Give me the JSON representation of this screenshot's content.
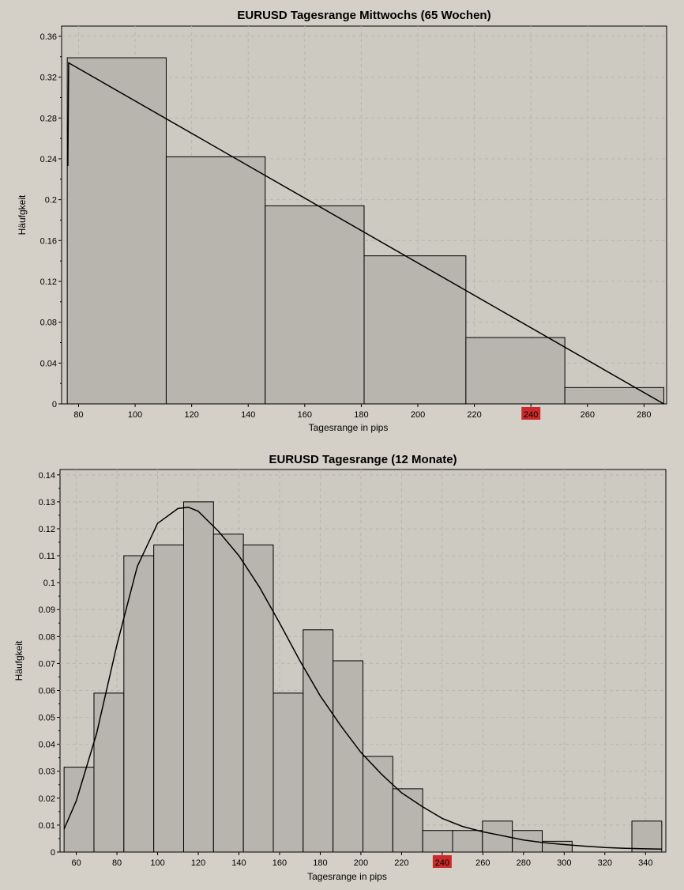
{
  "chart_data": [
    {
      "type": "bar",
      "title": "EURUSD Tagesrange Mittwochs (65 Wochen)",
      "xlabel": "Tagesrange in pips",
      "ylabel": "Häufgkeit",
      "xlim": [
        74,
        288
      ],
      "ylim": [
        0,
        0.37
      ],
      "x_ticks": [
        80,
        100,
        120,
        140,
        160,
        180,
        200,
        220,
        240,
        260,
        280
      ],
      "y_ticks": [
        0,
        0.04,
        0.08,
        0.12,
        0.16,
        0.2,
        0.24,
        0.28,
        0.32,
        0.36
      ],
      "y_tick_labels": [
        "0",
        "0.04",
        "0.08",
        "0.12",
        "0.16",
        "0.2",
        "0.24",
        "0.28",
        "0.32",
        "0.36"
      ],
      "highlight_tick": 240,
      "highlight_color": "#cc2a2a",
      "grid": true,
      "bins": [
        {
          "x0": 76,
          "x1": 111,
          "value": 0.339
        },
        {
          "x0": 111,
          "x1": 146,
          "value": 0.242
        },
        {
          "x0": 146,
          "x1": 181,
          "value": 0.194
        },
        {
          "x0": 181,
          "x1": 217,
          "value": 0.145
        },
        {
          "x0": 217,
          "x1": 252,
          "value": 0.065
        },
        {
          "x0": 252,
          "x1": 287,
          "value": 0.016
        }
      ],
      "fit_curve": [
        [
          76.2,
          0.233
        ],
        [
          76.5,
          0.334
        ],
        [
          287,
          0.0
        ]
      ]
    },
    {
      "type": "bar",
      "title": "EURUSD Tagesrange (12 Monate)",
      "xlabel": "Tagesrange in pips",
      "ylabel": "Häufgkeit",
      "xlim": [
        52,
        350
      ],
      "ylim": [
        0,
        0.142
      ],
      "x_ticks": [
        60,
        80,
        100,
        120,
        140,
        160,
        180,
        200,
        220,
        240,
        260,
        280,
        300,
        320,
        340
      ],
      "y_ticks": [
        0,
        0.01,
        0.02,
        0.03,
        0.04,
        0.05,
        0.06,
        0.07,
        0.08,
        0.09,
        0.1,
        0.11,
        0.12,
        0.13,
        0.14
      ],
      "y_tick_labels": [
        "0",
        "0.01",
        "0.02",
        "0.03",
        "0.04",
        "0.05",
        "0.06",
        "0.07",
        "0.08",
        "0.09",
        "0.1",
        "0.11",
        "0.12",
        "0.13",
        "0.14"
      ],
      "highlight_tick": 240,
      "highlight_color": "#cc2a2a",
      "grid": true,
      "bins": [
        {
          "x0": 54,
          "x1": 68.7,
          "value": 0.0315
        },
        {
          "x0": 68.7,
          "x1": 83.4,
          "value": 0.059
        },
        {
          "x0": 83.4,
          "x1": 98.1,
          "value": 0.11
        },
        {
          "x0": 98.1,
          "x1": 112.8,
          "value": 0.114
        },
        {
          "x0": 112.8,
          "x1": 127.5,
          "value": 0.13
        },
        {
          "x0": 127.5,
          "x1": 142.2,
          "value": 0.118
        },
        {
          "x0": 142.2,
          "x1": 156.9,
          "value": 0.114
        },
        {
          "x0": 156.9,
          "x1": 171.6,
          "value": 0.059
        },
        {
          "x0": 171.6,
          "x1": 186.3,
          "value": 0.0825
        },
        {
          "x0": 186.3,
          "x1": 201,
          "value": 0.071
        },
        {
          "x0": 201,
          "x1": 215.7,
          "value": 0.0355
        },
        {
          "x0": 215.7,
          "x1": 230.4,
          "value": 0.0235
        },
        {
          "x0": 230.4,
          "x1": 245.1,
          "value": 0.008
        },
        {
          "x0": 245.1,
          "x1": 259.8,
          "value": 0.008
        },
        {
          "x0": 259.8,
          "x1": 274.5,
          "value": 0.0115
        },
        {
          "x0": 274.5,
          "x1": 289.2,
          "value": 0.008
        },
        {
          "x0": 289.2,
          "x1": 303.9,
          "value": 0.004
        },
        {
          "x0": 303.9,
          "x1": 318.6,
          "value": 0.0
        },
        {
          "x0": 318.6,
          "x1": 333.3,
          "value": 0.0
        },
        {
          "x0": 333.3,
          "x1": 348,
          "value": 0.0115
        }
      ],
      "fit_curve": [
        [
          54,
          0.0085
        ],
        [
          60,
          0.019
        ],
        [
          70,
          0.044
        ],
        [
          80,
          0.077
        ],
        [
          90,
          0.106
        ],
        [
          100,
          0.122
        ],
        [
          110,
          0.1275
        ],
        [
          115,
          0.128
        ],
        [
          120,
          0.1265
        ],
        [
          130,
          0.119
        ],
        [
          140,
          0.11
        ],
        [
          150,
          0.0985
        ],
        [
          160,
          0.085
        ],
        [
          170,
          0.071
        ],
        [
          180,
          0.058
        ],
        [
          190,
          0.047
        ],
        [
          200,
          0.037
        ],
        [
          210,
          0.029
        ],
        [
          220,
          0.022
        ],
        [
          230,
          0.017
        ],
        [
          240,
          0.0125
        ],
        [
          250,
          0.0095
        ],
        [
          260,
          0.0075
        ],
        [
          270,
          0.006
        ],
        [
          280,
          0.0045
        ],
        [
          290,
          0.0035
        ],
        [
          300,
          0.0028
        ],
        [
          310,
          0.0022
        ],
        [
          320,
          0.0017
        ],
        [
          330,
          0.0014
        ],
        [
          340,
          0.0012
        ],
        [
          348,
          0.0011
        ]
      ]
    }
  ]
}
